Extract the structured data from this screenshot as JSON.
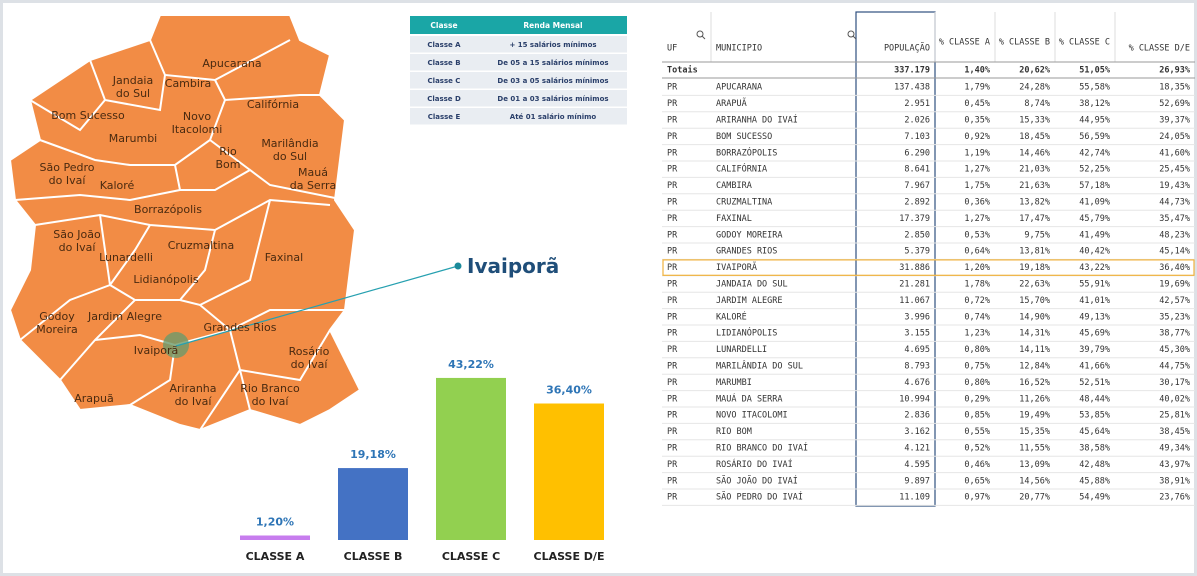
{
  "map": {
    "labels": [
      [
        "Apucarana"
      ],
      [
        "Jandaia",
        "do Sul"
      ],
      [
        "Cambira"
      ],
      [
        "Califórnia"
      ],
      [
        "Bom Sucesso"
      ],
      [
        "Novo",
        "Itacolomi"
      ],
      [
        "Marumbi"
      ],
      [
        "Rio",
        "Bom"
      ],
      [
        "Marilândia",
        "do Sul"
      ],
      [
        "São Pedro",
        "do Ivaí"
      ],
      [
        "Kaloré"
      ],
      [
        "Mauá",
        "da Serra"
      ],
      [
        "Borrazópolis"
      ],
      [
        "São João",
        "do Ivaí"
      ],
      [
        "Cruzmaltina"
      ],
      [
        "Faxinal"
      ],
      [
        "Lunardelli"
      ],
      [
        "Lidianópolis"
      ],
      [
        "Godoy",
        "Moreira"
      ],
      [
        "Jardim Alegre"
      ],
      [
        "Grandes Rios"
      ],
      [
        "Ivaiporã"
      ],
      [
        "Rosário",
        "do Ivaí"
      ],
      [
        "Ariranha",
        "do Ivaí"
      ],
      [
        "Rio Branco",
        "do Ivaí"
      ],
      [
        "Arapuã"
      ]
    ],
    "callout": "Ivaiporã"
  },
  "legend_table": {
    "header": [
      "Classe",
      "Renda Mensal"
    ],
    "rows": [
      [
        "Classe A",
        "+ 15 salários mínimos"
      ],
      [
        "Classe B",
        "De 05 a 15 salários mínimos"
      ],
      [
        "Classe C",
        "De 03 a 05 salários mínimos"
      ],
      [
        "Classe D",
        "De 01 a 03 salários mínimos"
      ],
      [
        "Classe E",
        "Até 01 salário mínimo"
      ]
    ]
  },
  "chart_data": {
    "type": "bar",
    "categories": [
      "CLASSE A",
      "CLASSE B",
      "CLASSE C",
      "CLASSE D/E"
    ],
    "values": [
      1.2,
      19.18,
      43.22,
      36.4
    ],
    "value_labels": [
      "1,20%",
      "19,18%",
      "43,22%",
      "36,40%"
    ],
    "colors": [
      "#c77dee",
      "#4472c4",
      "#92d050",
      "#ffc000"
    ]
  },
  "table": {
    "columns": [
      "UF",
      "MUNICIPIO",
      "POPULAÇÃO",
      "% CLASSE A",
      "% CLASSE B",
      "% CLASSE C",
      "% CLASSE D/E"
    ],
    "totals_label": "Totais",
    "totals": [
      "337.179",
      "1,40%",
      "20,62%",
      "51,05%",
      "26,93%"
    ],
    "rows": [
      [
        "PR",
        "APUCARANA",
        "137.438",
        "1,79%",
        "24,28%",
        "55,58%",
        "18,35%"
      ],
      [
        "PR",
        "ARAPUÃ",
        "2.951",
        "0,45%",
        "8,74%",
        "38,12%",
        "52,69%"
      ],
      [
        "PR",
        "ARIRANHA DO IVAÍ",
        "2.026",
        "0,35%",
        "15,33%",
        "44,95%",
        "39,37%"
      ],
      [
        "PR",
        "BOM SUCESSO",
        "7.103",
        "0,92%",
        "18,45%",
        "56,59%",
        "24,05%"
      ],
      [
        "PR",
        "BORRAZÓPOLIS",
        "6.290",
        "1,19%",
        "14,46%",
        "42,74%",
        "41,60%"
      ],
      [
        "PR",
        "CALIFÓRNIA",
        "8.641",
        "1,27%",
        "21,03%",
        "52,25%",
        "25,45%"
      ],
      [
        "PR",
        "CAMBIRA",
        "7.967",
        "1,75%",
        "21,63%",
        "57,18%",
        "19,43%"
      ],
      [
        "PR",
        "CRUZMALTINA",
        "2.892",
        "0,36%",
        "13,82%",
        "41,09%",
        "44,73%"
      ],
      [
        "PR",
        "FAXINAL",
        "17.379",
        "1,27%",
        "17,47%",
        "45,79%",
        "35,47%"
      ],
      [
        "PR",
        "GODOY MOREIRA",
        "2.850",
        "0,53%",
        "9,75%",
        "41,49%",
        "48,23%"
      ],
      [
        "PR",
        "GRANDES RIOS",
        "5.379",
        "0,64%",
        "13,81%",
        "40,42%",
        "45,14%"
      ],
      [
        "PR",
        "IVAIPORÃ",
        "31.886",
        "1,20%",
        "19,18%",
        "43,22%",
        "36,40%"
      ],
      [
        "PR",
        "JANDAIA DO SUL",
        "21.281",
        "1,78%",
        "22,63%",
        "55,91%",
        "19,69%"
      ],
      [
        "PR",
        "JARDIM ALEGRE",
        "11.067",
        "0,72%",
        "15,70%",
        "41,01%",
        "42,57%"
      ],
      [
        "PR",
        "KALORÉ",
        "3.996",
        "0,74%",
        "14,90%",
        "49,13%",
        "35,23%"
      ],
      [
        "PR",
        "LIDIANÓPOLIS",
        "3.155",
        "1,23%",
        "14,31%",
        "45,69%",
        "38,77%"
      ],
      [
        "PR",
        "LUNARDELLI",
        "4.695",
        "0,80%",
        "14,11%",
        "39,79%",
        "45,30%"
      ],
      [
        "PR",
        "MARILÂNDIA DO SUL",
        "8.793",
        "0,75%",
        "12,84%",
        "41,66%",
        "44,75%"
      ],
      [
        "PR",
        "MARUMBI",
        "4.676",
        "0,80%",
        "16,52%",
        "52,51%",
        "30,17%"
      ],
      [
        "PR",
        "MAUÁ DA SERRA",
        "10.994",
        "0,29%",
        "11,26%",
        "48,44%",
        "40,02%"
      ],
      [
        "PR",
        "NOVO ITACOLOMI",
        "2.836",
        "0,85%",
        "19,49%",
        "53,85%",
        "25,81%"
      ],
      [
        "PR",
        "RIO BOM",
        "3.162",
        "0,55%",
        "15,35%",
        "45,64%",
        "38,45%"
      ],
      [
        "PR",
        "RIO BRANCO DO IVAÍ",
        "4.121",
        "0,52%",
        "11,55%",
        "38,58%",
        "49,34%"
      ],
      [
        "PR",
        "ROSÁRIO DO IVAÍ",
        "4.595",
        "0,46%",
        "13,09%",
        "42,48%",
        "43,97%"
      ],
      [
        "PR",
        "SÃO JOÃO DO IVAÍ",
        "9.897",
        "0,65%",
        "14,56%",
        "45,88%",
        "38,91%"
      ],
      [
        "PR",
        "SÃO PEDRO DO IVAÍ",
        "11.109",
        "0,97%",
        "20,77%",
        "54,49%",
        "23,76%"
      ]
    ]
  }
}
